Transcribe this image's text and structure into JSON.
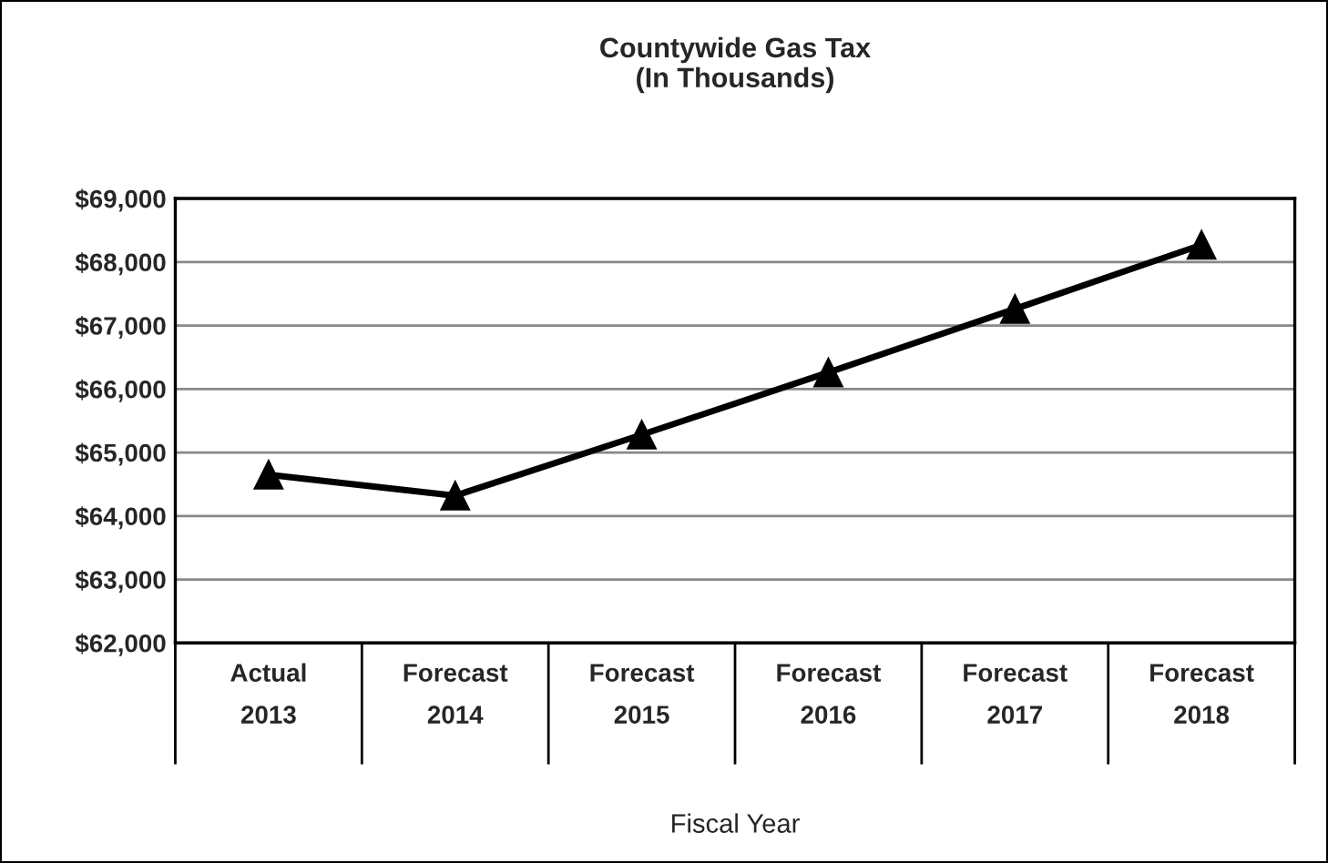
{
  "chart_data": {
    "type": "line",
    "title": "Countywide Gas Tax\n(In Thousands)",
    "xlabel": "Fiscal Year",
    "categories": [
      "Actual\n2013",
      "Forecast\n2014",
      "Forecast\n2015",
      "Forecast\n2016",
      "Forecast\n2017",
      "Forecast\n2018"
    ],
    "series": [
      {
        "color": "#000000",
        "values": [
          64650,
          64320,
          65280,
          66260,
          67260,
          68270
        ]
      }
    ],
    "ylim": [
      62000,
      69000
    ],
    "yticks": [
      {
        "value": 62000,
        "label": "$62,000"
      },
      {
        "value": 63000,
        "label": "$63,000"
      },
      {
        "value": 64000,
        "label": "$64,000"
      },
      {
        "value": 65000,
        "label": "$65,000"
      },
      {
        "value": 66000,
        "label": "$66,000"
      },
      {
        "value": 67000,
        "label": "$67,000"
      },
      {
        "value": 68000,
        "label": "$68,000"
      },
      {
        "value": 69000,
        "label": "$69,000"
      }
    ],
    "grid": "y",
    "marker": "triangle",
    "line_style": "solid"
  }
}
